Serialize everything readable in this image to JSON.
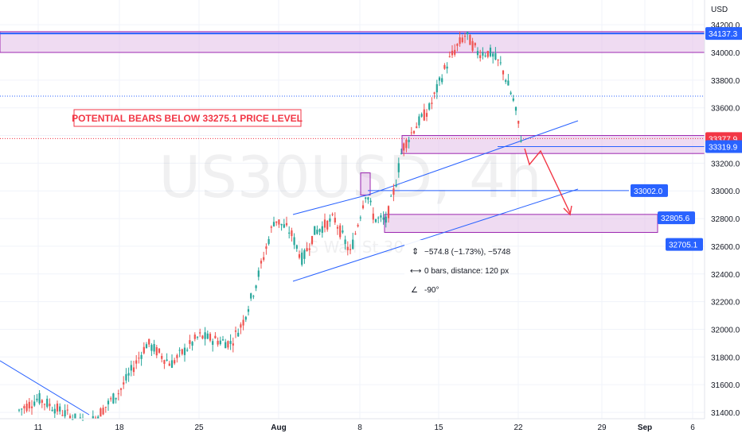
{
  "chart_data": {
    "type": "candlestick",
    "symbol": "US30USD",
    "interval": "4h",
    "watermark_sub": "US Wall St 30",
    "currency": "USD",
    "y_ticks": [
      31400,
      31600,
      31800,
      32000,
      32200,
      32400,
      32600,
      32800,
      33000,
      33200,
      33400,
      33600,
      33800,
      34000,
      34200
    ],
    "ylim": [
      31380,
      34280
    ],
    "x_labels": [
      "11",
      "18",
      "25",
      "Aug",
      "8",
      "15",
      "22",
      "29",
      "Sep",
      "6"
    ],
    "annotation_text": "POTENTIAL BEARS BELOW 33275.1 PRICE LEVEL",
    "price_labels": [
      {
        "value": 34137.3,
        "text": "34137.3",
        "color": "#2962ff",
        "side": "axis"
      },
      {
        "value": 33377.9,
        "text": "33377.9",
        "color": "#f23645",
        "side": "axis"
      },
      {
        "value": 33319.9,
        "text": "33319.9",
        "color": "#2962ff",
        "side": "axis"
      },
      {
        "value": 33002.0,
        "text": "33002.0",
        "color": "#2962ff",
        "side": "inner"
      },
      {
        "value": 32805.6,
        "text": "32805.6",
        "color": "#2962ff",
        "side": "inner"
      },
      {
        "value": 32705.1,
        "text": "32705.1",
        "color": "#2962ff",
        "side": "inner"
      }
    ],
    "zones": [
      {
        "name": "resistance-zone-top",
        "from": 34000,
        "to": 34150
      },
      {
        "name": "supply-zone-mid",
        "from": 33270,
        "to": 33400
      },
      {
        "name": "demand-zone-low",
        "from": 32700,
        "to": 32830
      },
      {
        "name": "small-zone",
        "from": 32970,
        "to": 33130
      }
    ],
    "measure_box": {
      "line1": "−574.8 (−1.73%), −5748",
      "line2": "0 bars, distance: 120 px",
      "line3": "-90°"
    },
    "colors": {
      "up": "#26a69a",
      "down": "#ef5350",
      "zone_fill": "#e1bee7",
      "zone_border": "#9c27b0",
      "trend": "#2962ff",
      "projection": "#f23645",
      "annotation": "#f23645"
    }
  }
}
